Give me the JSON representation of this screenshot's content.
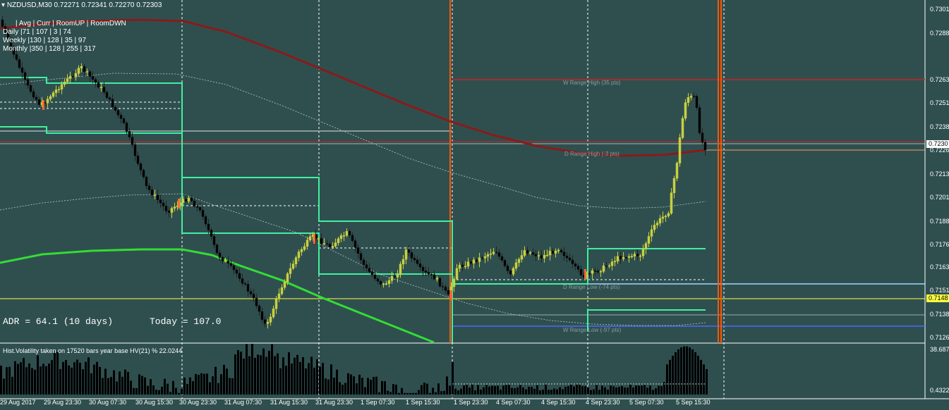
{
  "header": {
    "symbol_line": "NZDUSD,M30  0.72271 0.72341 0.72270 0.72303",
    "stats_header": "| Avg | Curr | RoomUP | RoomDWN",
    "stats_daily": "Daily   |71 | 107 | 3 | 74",
    "stats_weekly": "Weekly  |130 | 128 | 35 | 97",
    "stats_monthly": "Monthly |350 | 128 | 255 | 317"
  },
  "adr": {
    "label": "ADR = 64.1  (10 days)",
    "today": "Today = 107.0"
  },
  "range_labels": {
    "w_high": "W Range High (35 pts)",
    "d_high": "D Range High (-3 pts)",
    "d_low": "D Range Low (-74 pts)",
    "w_low": "W Range Low (-97 pts)"
  },
  "indicator": {
    "title": "Hist.Volatility  taken on 17520 bars year base  HV(21) %  22.0244",
    "scale_top": "38.6875",
    "scale_bottom": "0.4322"
  },
  "price_axis": [
    "0.7301",
    "0.7288",
    "0.7263",
    "0.7251",
    "0.7238",
    "0.7226",
    "0.7213",
    "0.7201",
    "0.7188",
    "0.7176",
    "0.7163",
    "0.7151",
    "0.7138",
    "0.7126"
  ],
  "price_tags": {
    "current": "0.7230",
    "support": "0.7148"
  },
  "time_axis": [
    "29 Aug 2017",
    "29 Aug 23:30",
    "30 Aug 07:30",
    "30 Aug 15:30",
    "30 Aug 23:30",
    "31 Aug 07:30",
    "31 Aug 15:30",
    "31 Aug 23:30",
    "1 Sep 07:30",
    "1 Sep 15:30",
    "1 Sep 23:30",
    "4 Sep 07:30",
    "4 Sep 15:30",
    "4 Sep 23:30",
    "5 Sep 07:30",
    "5 Sep 15:30"
  ],
  "colors": {
    "background": "#2f4f4f",
    "candle_up": "#c8d040",
    "ma_slow": "#8b1a1a",
    "ma_green": "#33dd33",
    "range_levels": "#40f0a0",
    "session_line": "#ff5500",
    "support_line": "#ffff40"
  }
}
